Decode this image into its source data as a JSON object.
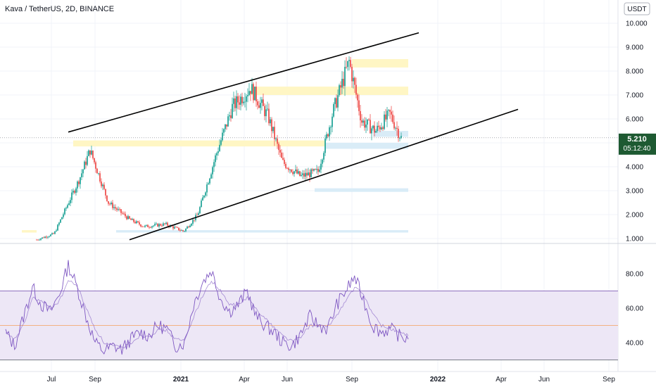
{
  "header": {
    "title": "Kava / TetherUS, 2D, BINANCE",
    "currency_button": "USDT"
  },
  "price_tag": {
    "price": "5.210",
    "countdown": "05:12:40",
    "color": "#1e5a32"
  },
  "colors": {
    "up": "#26a69a",
    "down": "#ef5350",
    "rsi_line": "#7e57c2",
    "rsi_band": "#ede7f6",
    "rsi_mid": "#f5a15d",
    "trendline": "#000000",
    "zone_yellow": "#fff6c4",
    "zone_blue": "#d9ecf7"
  },
  "chart_data": [
    {
      "type": "line",
      "title": "Kava / TetherUS, 2D, BINANCE",
      "y_ticks": [
        "10.000",
        "9.000",
        "8.000",
        "7.000",
        "6.000",
        "5.000",
        "4.000",
        "3.000",
        "2.000",
        "1.000"
      ],
      "ylim": [
        0.8,
        10.3
      ],
      "x_ticks": [
        "Jul",
        "Sep",
        "2021",
        "Apr",
        "Jun",
        "Sep",
        "2022",
        "Apr",
        "Jun",
        "Sep"
      ],
      "x": [
        "2020-06-10",
        "2020-07-05",
        "2020-08-10",
        "2020-08-25",
        "2020-09-20",
        "2020-10-20",
        "2020-11-10",
        "2020-12-10",
        "2021-01-05",
        "2021-01-25",
        "2021-02-20",
        "2021-03-15",
        "2021-04-10",
        "2021-05-05",
        "2021-05-25",
        "2021-06-20",
        "2021-07-15",
        "2021-08-05",
        "2021-08-28",
        "2021-09-15",
        "2021-10-05",
        "2021-10-25",
        "2021-11-10"
      ],
      "close": [
        0.95,
        1.2,
        3.5,
        4.7,
        2.5,
        1.8,
        1.5,
        1.6,
        1.3,
        2.0,
        4.5,
        6.5,
        7.3,
        6.1,
        4.2,
        3.6,
        3.8,
        6.3,
        8.4,
        5.9,
        5.5,
        6.2,
        5.21
      ],
      "trendlines": [
        {
          "name": "upper channel",
          "from": [
            "2020-07-25",
            5.45
          ],
          "to": [
            "2021-12-05",
            9.6
          ]
        },
        {
          "name": "lower channel",
          "from": [
            "2020-10-20",
            0.95
          ],
          "to": [
            "2022-04-25",
            6.4
          ]
        }
      ],
      "zones": [
        {
          "color": "yellow",
          "from": "2020-08-01",
          "to": "2021-07-25",
          "y": [
            4.85,
            5.1
          ]
        },
        {
          "color": "yellow",
          "from": "2021-04-10",
          "to": "2021-11-20",
          "y": [
            7.0,
            7.35
          ]
        },
        {
          "color": "yellow",
          "from": "2021-09-01",
          "to": "2021-11-20",
          "y": [
            8.15,
            8.5
          ]
        },
        {
          "color": "blue",
          "from": "2021-07-25",
          "to": "2021-11-20",
          "y": [
            4.75,
            5.0
          ]
        },
        {
          "color": "blue",
          "from": "2021-10-01",
          "to": "2021-11-20",
          "y": [
            5.25,
            5.5
          ]
        },
        {
          "color": "blue",
          "from": "2021-07-10",
          "to": "2021-11-20",
          "y": [
            2.95,
            3.1
          ]
        },
        {
          "color": "blue",
          "from": "2020-10-01",
          "to": "2021-11-20",
          "y": [
            1.25,
            1.35
          ]
        },
        {
          "color": "yellow",
          "from": "2020-05-20",
          "to": "2020-06-10",
          "y": [
            1.25,
            1.35
          ]
        }
      ],
      "last_price": 5.21
    },
    {
      "type": "line",
      "y_ticks": [
        "80.00",
        "60.00",
        "40.00"
      ],
      "ylim": [
        30,
        90
      ],
      "band": [
        30,
        70
      ],
      "mid": 50,
      "series": [
        {
          "values": [
            46,
            38,
            55,
            72,
            62,
            58,
            68,
            85,
            72,
            55,
            40,
            35,
            38,
            36,
            42,
            46,
            44,
            50,
            48,
            38,
            40,
            62,
            75,
            82,
            66,
            58,
            62,
            70,
            55,
            50,
            46,
            40,
            38,
            45,
            55,
            50,
            48,
            62,
            70,
            78,
            65,
            50,
            46,
            48,
            44,
            42
          ]
        },
        {
          "values": [
            45,
            42,
            50,
            66,
            64,
            60,
            64,
            76,
            73,
            60,
            48,
            40,
            38,
            37,
            40,
            44,
            44,
            47,
            47,
            42,
            41,
            55,
            67,
            76,
            70,
            62,
            62,
            66,
            60,
            54,
            49,
            44,
            41,
            43,
            50,
            50,
            49,
            56,
            64,
            72,
            68,
            57,
            50,
            48,
            46,
            44
          ]
        }
      ]
    }
  ]
}
